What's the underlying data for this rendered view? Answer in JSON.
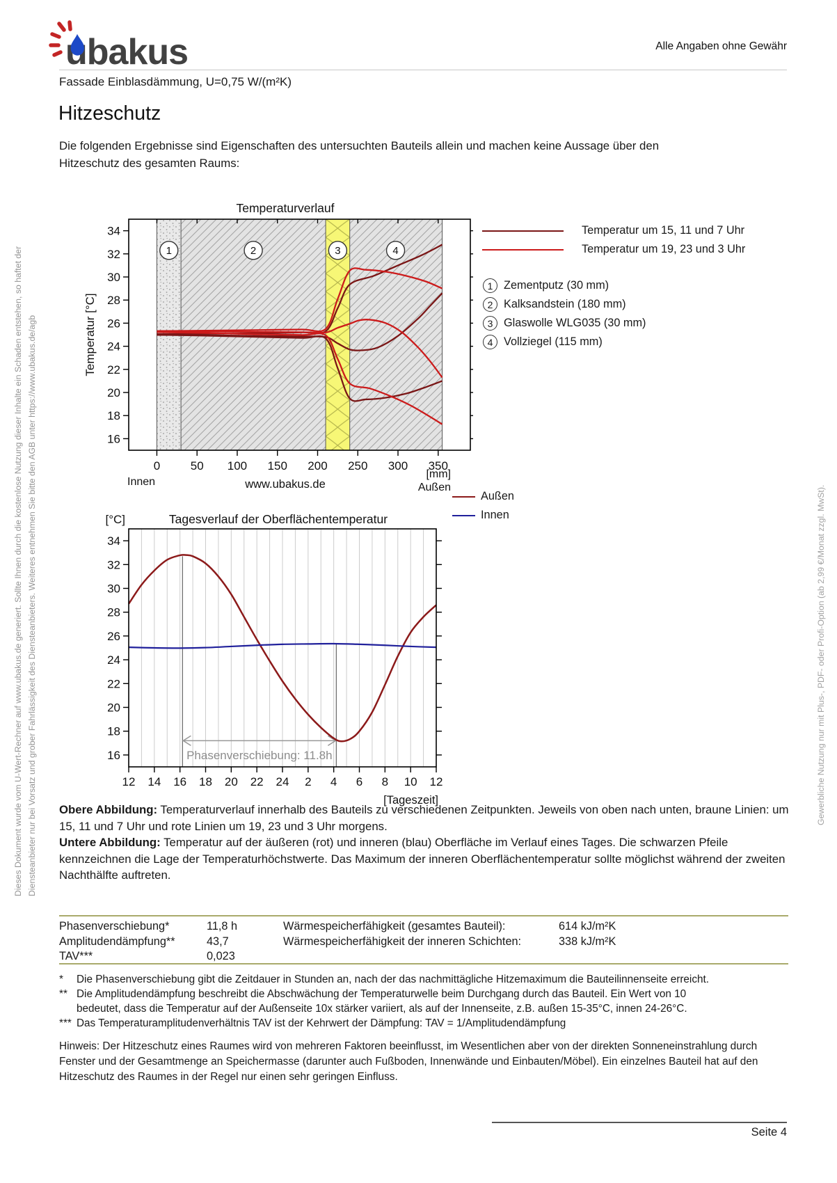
{
  "header": {
    "brand": "ubakus",
    "note": "Alle Angaben ohne Gewähr",
    "subtitle": "Fassade Einblasdämmung, U=0,75 W/(m²K)"
  },
  "title": "Hitzeschutz",
  "intro": "Die folgenden Ergebnisse sind Eigenschaften des untersuchten Bauteils allein und machen keine Aussage über den Hitzeschutz des gesamten Raums:",
  "captions": {
    "top_label": "Obere Abbildung:",
    "top_text": " Temperaturverlauf innerhalb des Bauteils zu verschiedenen Zeitpunkten. Jeweils von oben nach unten, braune Linien: um 15, 11 und 7 Uhr und rote Linien um 19, 23 und 3 Uhr morgens.",
    "bottom_label": "Untere Abbildung:",
    "bottom_text": " Temperatur auf der äußeren (rot) und inneren (blau) Oberfläche im Verlauf eines Tages. Die schwarzen Pfeile kennzeichnen die Lage der Temperaturhöchstwerte. Das Maximum der inneren Oberflächentemperatur sollte möglichst während der zweiten Nachthälfte auftreten."
  },
  "results_table": {
    "rows_left": [
      {
        "label": "Phasenverschiebung*",
        "value": "11,8 h"
      },
      {
        "label": "Amplitudendämpfung**",
        "value": "43,7"
      },
      {
        "label": "TAV***",
        "value": "0,023"
      }
    ],
    "rows_right": [
      {
        "label": "Wärmespeicherfähigkeit (gesamtes Bauteil):",
        "value": "614 kJ/m²K"
      },
      {
        "label": "Wärmespeicherfähigkeit der inneren Schichten:",
        "value": "338 kJ/m²K"
      }
    ]
  },
  "footnotes": [
    {
      "marker": "*",
      "lines": [
        "Die Phasenverschiebung gibt die Zeitdauer in Stunden an, nach der das nachmittägliche Hitzemaximum die Bauteilinnenseite erreicht."
      ]
    },
    {
      "marker": "**",
      "lines": [
        "Die Amplitudendämpfung beschreibt die Abschwächung der Temperaturwelle beim Durchgang durch das Bauteil. Ein Wert von 10",
        "bedeutet, dass die Temperatur auf der Außenseite 10x stärker variiert, als auf der Innenseite, z.B. außen 15-35°C, innen 24-26°C."
      ]
    },
    {
      "marker": "***",
      "lines": [
        "Das Temperaturamplitudenverhältnis TAV ist der Kehrwert der Dämpfung: TAV = 1/Amplitudendämpfung"
      ]
    }
  ],
  "hinweis": "Hinweis: Der Hitzeschutz eines Raumes wird von mehreren Faktoren beeinflusst, im Wesentlichen aber von der direkten Sonneneinstrahlung durch Fenster und der Gesamtmenge an Speichermasse (darunter auch Fußboden, Innenwände und Einbauten/Möbel). Ein einzelnes Bauteil hat auf den Hitzeschutz des Raumes in der Regel nur einen sehr geringen Einfluss.",
  "footer": {
    "page": "Seite 4"
  },
  "side_notes": {
    "left_line1": "Dieses Dokument wurde vom U-Wert-Rechner auf www.ubakus.de generiert. Sollte Ihnen durch die kostenlose Nutzung dieser Inhalte ein Schaden entstehen, so haftet der",
    "left_line2": "Diensteanbieter nur bei Vorsatz und grober Fahrlässigkeit des Diensteanbieters. Weiteres entnehmen Sie bitte den AGB unter https://www.ubakus.de/agb",
    "right": "Gewerbliche Nutzung nur mit Plus-, PDF- oder Profi-Option (ab 2,99 €/Monat zzgl. MwSt)."
  },
  "chart_data": [
    {
      "type": "line",
      "title": "Temperaturverlauf",
      "ylabel": "Temperatur [°C]",
      "unit_label": "[mm]",
      "inner_label": "Innen",
      "outer_label": "Außen",
      "watermark": "www.ubakus.de",
      "xlim": [
        -35,
        390
      ],
      "ylim": [
        15,
        35
      ],
      "x_ticks": [
        0,
        50,
        100,
        150,
        200,
        250,
        300,
        350
      ],
      "y_ticks": [
        16,
        18,
        20,
        22,
        24,
        26,
        28,
        30,
        32,
        34
      ],
      "badge_temp": 32.3,
      "layers": [
        {
          "num": "1",
          "label": "Zementputz (30 mm)",
          "from": 0,
          "to": 30,
          "badge_mm": 15,
          "pattern": "stipple"
        },
        {
          "num": "2",
          "label": "Kalksandstein (180 mm)",
          "from": 30,
          "to": 210,
          "badge_mm": 120,
          "pattern": "hatch"
        },
        {
          "num": "3",
          "label": "Glaswolle WLG035 (30 mm)",
          "from": 210,
          "to": 240,
          "badge_mm": 225,
          "pattern": "insulation"
        },
        {
          "num": "4",
          "label": "Vollziegel (115 mm)",
          "from": 240,
          "to": 355,
          "badge_mm": 297,
          "pattern": "hatch"
        }
      ],
      "legend": [
        {
          "label": "Temperatur um 15, 11 und 7 Uhr",
          "color": "#7a1616"
        },
        {
          "label": "Temperatur um 19, 23 und 3 Uhr",
          "color": "#cc1b1b"
        }
      ],
      "series": [
        {
          "name": "15 Uhr",
          "color": "#7a1616",
          "points": [
            [
              0,
              25.05
            ],
            [
              60,
              25.08
            ],
            [
              120,
              25.12
            ],
            [
              180,
              25.2
            ],
            [
              210,
              25.3
            ],
            [
              225,
              27.3
            ],
            [
              240,
              29.35
            ],
            [
              270,
              30.1
            ],
            [
              300,
              31.0
            ],
            [
              330,
              31.9
            ],
            [
              355,
              32.8
            ]
          ]
        },
        {
          "name": "11 Uhr",
          "color": "#7a1616",
          "points": [
            [
              0,
              24.98
            ],
            [
              60,
              24.95
            ],
            [
              120,
              24.9
            ],
            [
              180,
              24.85
            ],
            [
              210,
              24.8
            ],
            [
              225,
              24.25
            ],
            [
              240,
              23.72
            ],
            [
              255,
              23.65
            ],
            [
              275,
              23.9
            ],
            [
              300,
              24.9
            ],
            [
              325,
              26.4
            ],
            [
              340,
              27.5
            ],
            [
              355,
              28.6
            ]
          ]
        },
        {
          "name": "7 Uhr",
          "color": "#7a1616",
          "points": [
            [
              0,
              25.0
            ],
            [
              60,
              24.92
            ],
            [
              120,
              24.82
            ],
            [
              180,
              24.72
            ],
            [
              210,
              24.68
            ],
            [
              225,
              22.1
            ],
            [
              240,
              19.48
            ],
            [
              260,
              19.4
            ],
            [
              285,
              19.55
            ],
            [
              310,
              19.9
            ],
            [
              332,
              20.4
            ],
            [
              355,
              21.0
            ]
          ]
        },
        {
          "name": "19 Uhr",
          "color": "#cc1b1b",
          "points": [
            [
              0,
              25.32
            ],
            [
              60,
              25.35
            ],
            [
              120,
              25.4
            ],
            [
              180,
              25.45
            ],
            [
              210,
              25.5
            ],
            [
              225,
              28.1
            ],
            [
              240,
              30.55
            ],
            [
              260,
              30.62
            ],
            [
              285,
              30.45
            ],
            [
              310,
              30.1
            ],
            [
              335,
              29.6
            ],
            [
              355,
              29.0
            ]
          ]
        },
        {
          "name": "23 Uhr",
          "color": "#cc1b1b",
          "points": [
            [
              0,
              25.28
            ],
            [
              60,
              25.28
            ],
            [
              120,
              25.25
            ],
            [
              180,
              25.22
            ],
            [
              210,
              25.2
            ],
            [
              225,
              25.6
            ],
            [
              240,
              25.95
            ],
            [
              252,
              26.25
            ],
            [
              265,
              26.3
            ],
            [
              285,
              26.0
            ],
            [
              305,
              25.2
            ],
            [
              325,
              23.9
            ],
            [
              340,
              22.7
            ],
            [
              355,
              21.3
            ]
          ]
        },
        {
          "name": "3 Uhr",
          "color": "#cc1b1b",
          "points": [
            [
              0,
              25.22
            ],
            [
              60,
              25.15
            ],
            [
              120,
              25.05
            ],
            [
              180,
              24.98
            ],
            [
              210,
              24.95
            ],
            [
              225,
              22.9
            ],
            [
              240,
              20.78
            ],
            [
              265,
              20.35
            ],
            [
              290,
              19.7
            ],
            [
              315,
              18.9
            ],
            [
              335,
              18.1
            ],
            [
              355,
              17.25
            ]
          ]
        }
      ]
    },
    {
      "type": "line",
      "title": "Tagesverlauf der Oberflächentemperatur",
      "ylabel_top": "[°C]",
      "xlabel": "[Tageszeit]",
      "xlim": [
        12,
        36
      ],
      "ylim": [
        15,
        35
      ],
      "x_ticks": [
        12,
        14,
        16,
        18,
        20,
        22,
        24,
        26,
        28,
        30,
        32,
        34,
        36
      ],
      "x_tick_labels": [
        "12",
        "14",
        "16",
        "18",
        "20",
        "22",
        "24",
        "2",
        "4",
        "6",
        "8",
        "10",
        "12"
      ],
      "y_ticks": [
        16,
        18,
        20,
        22,
        24,
        26,
        28,
        30,
        32,
        34
      ],
      "grid_step_hours": 1,
      "legend": [
        {
          "label": "Außen",
          "color": "#8c1a1a"
        },
        {
          "label": "Innen",
          "color": "#20209b"
        }
      ],
      "phase_marker": {
        "outer_max_hour": 16.2,
        "inner_max_hour": 28.2,
        "arrow_temp": 17.2,
        "label": "Phasenverschiebung: 11.8h"
      },
      "series": [
        {
          "name": "Außen",
          "color": "#8c1a1a",
          "points": [
            [
              12,
              28.7
            ],
            [
              13,
              30.3
            ],
            [
              14,
              31.5
            ],
            [
              15,
              32.4
            ],
            [
              16,
              32.78
            ],
            [
              16.5,
              32.8
            ],
            [
              17,
              32.7
            ],
            [
              18,
              32.1
            ],
            [
              19,
              31.0
            ],
            [
              20,
              29.5
            ],
            [
              21,
              27.6
            ],
            [
              22,
              25.7
            ],
            [
              23,
              23.9
            ],
            [
              24,
              22.2
            ],
            [
              25,
              20.7
            ],
            [
              26,
              19.4
            ],
            [
              27,
              18.3
            ],
            [
              28,
              17.4
            ],
            [
              28.6,
              17.15
            ],
            [
              29.3,
              17.35
            ],
            [
              30,
              18.0
            ],
            [
              31,
              19.6
            ],
            [
              32,
              21.9
            ],
            [
              33,
              24.3
            ],
            [
              34,
              26.3
            ],
            [
              35,
              27.6
            ],
            [
              36,
              28.6
            ]
          ]
        },
        {
          "name": "Innen",
          "color": "#20209b",
          "points": [
            [
              12,
              25.05
            ],
            [
              14,
              25.0
            ],
            [
              16,
              24.98
            ],
            [
              18,
              25.02
            ],
            [
              20,
              25.12
            ],
            [
              22,
              25.22
            ],
            [
              24,
              25.3
            ],
            [
              26,
              25.33
            ],
            [
              28,
              25.35
            ],
            [
              30,
              25.3
            ],
            [
              32,
              25.22
            ],
            [
              34,
              25.12
            ],
            [
              36,
              25.05
            ]
          ]
        }
      ]
    }
  ]
}
